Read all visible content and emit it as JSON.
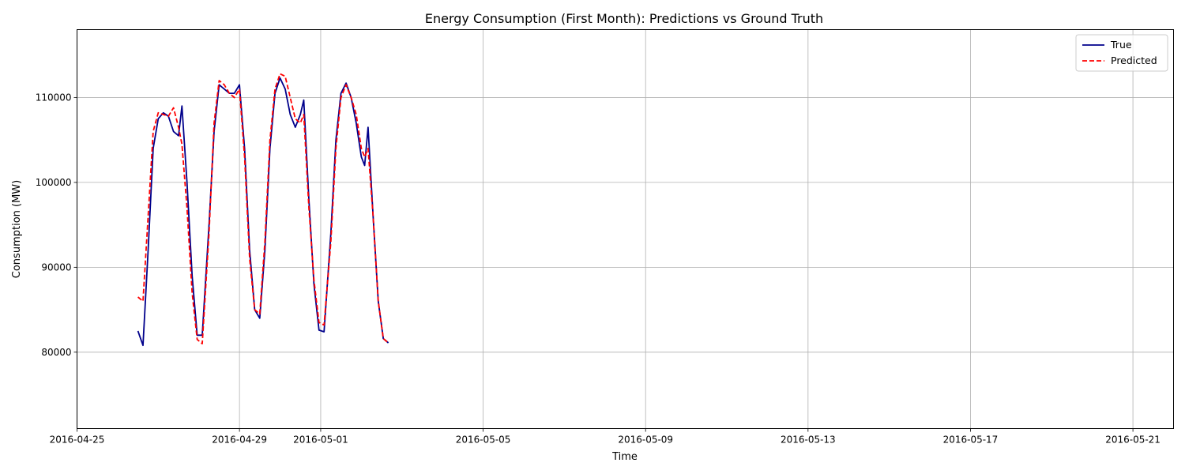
{
  "chart_data": {
    "type": "line",
    "title": "Energy Consumption (First Month): Predictions vs Ground Truth",
    "xlabel": "Time",
    "ylabel": "Consumption (MW)",
    "xlim": [
      "2016-04-25T00:00",
      "2016-05-22T00:00"
    ],
    "ylim": [
      71000,
      118000
    ],
    "x_ticks": [
      "2016-04-25",
      "2016-04-29",
      "2016-05-01",
      "2016-05-05",
      "2016-05-09",
      "2016-05-13",
      "2016-05-17",
      "2016-05-21"
    ],
    "y_ticks": [
      80000,
      90000,
      100000,
      110000
    ],
    "grid": true,
    "legend_position": "top-right",
    "series": [
      {
        "name": "True",
        "color": "#00008b",
        "linestyle": "solid",
        "points": [
          [
            "2016-04-26T12:00",
            82500
          ],
          [
            "2016-04-26T15:00",
            80800
          ],
          [
            "2016-04-26T18:00",
            92000
          ],
          [
            "2016-04-26T21:00",
            104000
          ],
          [
            "2016-04-27T00:00",
            107500
          ],
          [
            "2016-04-27T03:00",
            108200
          ],
          [
            "2016-04-27T06:00",
            107800
          ],
          [
            "2016-04-27T09:00",
            106000
          ],
          [
            "2016-04-27T12:00",
            105500
          ],
          [
            "2016-04-27T14:00",
            109000
          ],
          [
            "2016-04-27T17:00",
            100000
          ],
          [
            "2016-04-27T20:00",
            89000
          ],
          [
            "2016-04-27T23:00",
            82000
          ],
          [
            "2016-04-28T02:00",
            82000
          ],
          [
            "2016-04-28T06:00",
            95000
          ],
          [
            "2016-04-28T09:00",
            106000
          ],
          [
            "2016-04-28T12:00",
            111500
          ],
          [
            "2016-04-28T15:00",
            111000
          ],
          [
            "2016-04-28T18:00",
            110500
          ],
          [
            "2016-04-28T21:00",
            110500
          ],
          [
            "2016-04-29T00:00",
            111500
          ],
          [
            "2016-04-29T03:00",
            104000
          ],
          [
            "2016-04-29T06:00",
            92000
          ],
          [
            "2016-04-29T09:00",
            85000
          ],
          [
            "2016-04-29T12:00",
            84000
          ],
          [
            "2016-04-29T15:00",
            92000
          ],
          [
            "2016-04-29T18:00",
            104000
          ],
          [
            "2016-04-29T21:00",
            110500
          ],
          [
            "2016-04-30T00:00",
            112300
          ],
          [
            "2016-04-30T03:00",
            111000
          ],
          [
            "2016-04-30T06:00",
            108000
          ],
          [
            "2016-04-30T09:00",
            106500
          ],
          [
            "2016-04-30T12:00",
            108000
          ],
          [
            "2016-04-30T14:00",
            109700
          ],
          [
            "2016-04-30T17:00",
            98000
          ],
          [
            "2016-04-30T20:00",
            88000
          ],
          [
            "2016-04-30T23:00",
            82600
          ],
          [
            "2016-05-01T02:00",
            82400
          ],
          [
            "2016-05-01T06:00",
            94000
          ],
          [
            "2016-05-01T09:00",
            105000
          ],
          [
            "2016-05-01T12:00",
            110500
          ],
          [
            "2016-05-01T15:00",
            111700
          ],
          [
            "2016-05-01T18:00",
            110000
          ],
          [
            "2016-05-01T21:00",
            107000
          ],
          [
            "2016-05-02T00:00",
            103000
          ],
          [
            "2016-05-02T02:00",
            102000
          ],
          [
            "2016-05-02T04:00",
            106500
          ],
          [
            "2016-05-02T07:00",
            96000
          ],
          [
            "2016-05-02T10:00",
            86000
          ],
          [
            "2016-05-02T13:00",
            81600
          ],
          [
            "2016-05-02T16:00",
            81100
          ]
        ]
      },
      {
        "name": "Predicted",
        "color": "#ff0000",
        "linestyle": "dashed",
        "points": [
          [
            "2016-04-26T12:00",
            86500
          ],
          [
            "2016-04-26T15:00",
            86000
          ],
          [
            "2016-04-26T18:00",
            96000
          ],
          [
            "2016-04-26T21:00",
            106000
          ],
          [
            "2016-04-27T00:00",
            108200
          ],
          [
            "2016-04-27T03:00",
            108000
          ],
          [
            "2016-04-27T06:00",
            107800
          ],
          [
            "2016-04-27T09:00",
            108800
          ],
          [
            "2016-04-27T12:00",
            106500
          ],
          [
            "2016-04-27T14:00",
            104500
          ],
          [
            "2016-04-27T17:00",
            97000
          ],
          [
            "2016-04-27T20:00",
            87000
          ],
          [
            "2016-04-27T23:00",
            81500
          ],
          [
            "2016-04-28T02:00",
            81000
          ],
          [
            "2016-04-28T06:00",
            94000
          ],
          [
            "2016-04-28T09:00",
            107000
          ],
          [
            "2016-04-28T12:00",
            112000
          ],
          [
            "2016-04-28T15:00",
            111500
          ],
          [
            "2016-04-28T18:00",
            110500
          ],
          [
            "2016-04-28T21:00",
            110000
          ],
          [
            "2016-04-29T00:00",
            111000
          ],
          [
            "2016-04-29T03:00",
            103000
          ],
          [
            "2016-04-29T06:00",
            91000
          ],
          [
            "2016-04-29T09:00",
            85000
          ],
          [
            "2016-04-29T12:00",
            84500
          ],
          [
            "2016-04-29T15:00",
            93000
          ],
          [
            "2016-04-29T18:00",
            105000
          ],
          [
            "2016-04-29T21:00",
            111000
          ],
          [
            "2016-04-30T00:00",
            112800
          ],
          [
            "2016-04-30T03:00",
            112500
          ],
          [
            "2016-04-30T06:00",
            110000
          ],
          [
            "2016-04-30T09:00",
            107500
          ],
          [
            "2016-04-30T12:00",
            107000
          ],
          [
            "2016-04-30T14:00",
            108000
          ],
          [
            "2016-04-30T17:00",
            97000
          ],
          [
            "2016-04-30T20:00",
            88500
          ],
          [
            "2016-04-30T23:00",
            83500
          ],
          [
            "2016-05-01T02:00",
            83200
          ],
          [
            "2016-05-01T06:00",
            93000
          ],
          [
            "2016-05-01T09:00",
            104000
          ],
          [
            "2016-05-01T12:00",
            110000
          ],
          [
            "2016-05-01T15:00",
            111500
          ],
          [
            "2016-05-01T18:00",
            110000
          ],
          [
            "2016-05-01T21:00",
            108000
          ],
          [
            "2016-05-02T00:00",
            104000
          ],
          [
            "2016-05-02T02:00",
            103000
          ],
          [
            "2016-05-02T04:00",
            104000
          ],
          [
            "2016-05-02T07:00",
            96000
          ],
          [
            "2016-05-02T10:00",
            86000
          ],
          [
            "2016-05-02T13:00",
            81600
          ],
          [
            "2016-05-02T16:00",
            81100
          ]
        ]
      }
    ]
  }
}
